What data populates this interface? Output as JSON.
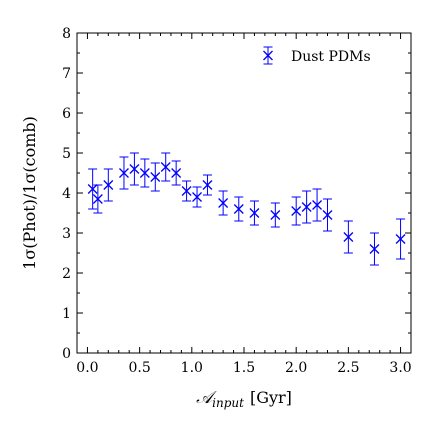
{
  "chart_data": {
    "type": "scatter",
    "title": "",
    "xlabel": "[Gyr]",
    "xlabel_symbol": "𝒜",
    "xlabel_subscript": "input",
    "ylabel": "1σ(Phot)/1σ(comb)",
    "xlim": [
      -0.1,
      3.1
    ],
    "ylim": [
      0,
      8
    ],
    "xticks": [
      "0.0",
      "0.5",
      "1.0",
      "1.5",
      "2.0",
      "2.5",
      "3.0"
    ],
    "yticks": [
      "0",
      "1",
      "2",
      "3",
      "4",
      "5",
      "6",
      "7",
      "8"
    ],
    "legend": {
      "position": "top-right"
    },
    "series": [
      {
        "name": "Dust PDMs",
        "color": "#0000ff",
        "marker": "x",
        "x": [
          0.05,
          0.1,
          0.2,
          0.35,
          0.45,
          0.55,
          0.65,
          0.75,
          0.85,
          0.95,
          1.05,
          1.15,
          1.3,
          1.45,
          1.6,
          1.8,
          2.0,
          2.1,
          2.2,
          2.3,
          2.5,
          2.75,
          3.0
        ],
        "y": [
          4.1,
          3.85,
          4.2,
          4.5,
          4.6,
          4.5,
          4.4,
          4.65,
          4.5,
          4.05,
          3.9,
          4.2,
          3.75,
          3.6,
          3.5,
          3.45,
          3.55,
          3.65,
          3.7,
          3.45,
          2.9,
          2.6,
          2.85
        ],
        "err": [
          0.5,
          0.35,
          0.4,
          0.4,
          0.4,
          0.35,
          0.35,
          0.35,
          0.3,
          0.25,
          0.25,
          0.25,
          0.3,
          0.3,
          0.3,
          0.3,
          0.35,
          0.4,
          0.4,
          0.4,
          0.4,
          0.4,
          0.5
        ]
      }
    ]
  }
}
